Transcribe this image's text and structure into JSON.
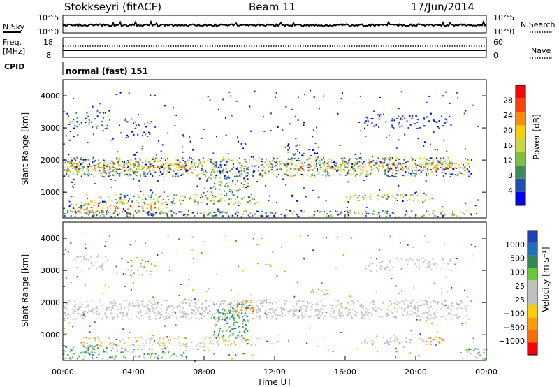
{
  "header": {
    "station": "Stokkseyri (fitACF)",
    "beam": "Beam 11",
    "date": "17/Jun/2014"
  },
  "summary": {
    "nsky_label": "N.Sky",
    "nsky_ticks": [
      "10^5",
      "10^0"
    ],
    "nsearch_label": "N.Search",
    "freq_label_1": "Freq.",
    "freq_label_2": "[MHz]",
    "freq_ticks": [
      "18",
      "8"
    ],
    "nave_label": "Nave",
    "nave_ticks": [
      "60",
      "0"
    ],
    "cpid_label": "CPID",
    "cpid_value": "normal (fast) 151"
  },
  "colors": {
    "power": [
      "#0000ff",
      "#1f4fb4",
      "#3d8b5c",
      "#7fbf3f",
      "#c8d840",
      "#ffd000",
      "#ff8c00",
      "#ff4000",
      "#ff0000"
    ],
    "velocity": [
      "#ff0000",
      "#ff6a00",
      "#ff9a00",
      "#ffcc00",
      "#c0c0c0",
      "#c0c0c0",
      "#66cc33",
      "#2e8b57",
      "#1f6fbf",
      "#1f3fbf"
    ]
  },
  "chart_data": [
    {
      "type": "heatmap",
      "name": "power-panel",
      "ylabel": "Slant Range [km]",
      "yticks": [
        "4000",
        "3000",
        "2000",
        "1000"
      ],
      "ylim": [
        200,
        4500
      ],
      "xlim": [
        "00:00",
        "24:00"
      ],
      "colorbar_label": "Power [dB]",
      "colorbar_ticks": [
        "28",
        "24",
        "20",
        "16",
        "12",
        "8",
        "4"
      ],
      "colorbar_range": [
        0,
        32
      ]
    },
    {
      "type": "heatmap",
      "name": "velocity-panel",
      "xlabel": "Time UT",
      "ylabel": "Slant Range [km]",
      "yticks": [
        "4000",
        "3000",
        "2000",
        "1000"
      ],
      "ylim": [
        200,
        4500
      ],
      "xticks": [
        "00:00",
        "04:00",
        "08:00",
        "12:00",
        "16:00",
        "20:00",
        "00:00"
      ],
      "colorbar_label": "Velocity [m s⁻¹]",
      "colorbar_ticks": [
        "1000",
        "500",
        "100",
        "25",
        "−25",
        "−100",
        "−500",
        "−1000"
      ]
    }
  ]
}
